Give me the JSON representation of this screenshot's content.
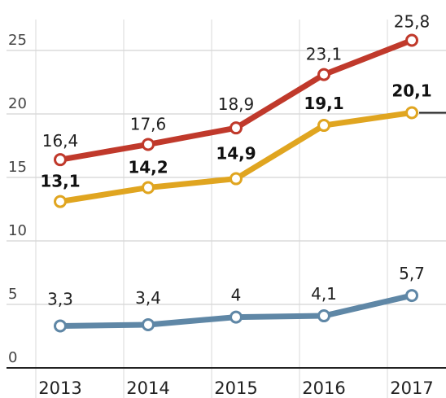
{
  "chart_data": {
    "type": "line",
    "categories": [
      "2013",
      "2014",
      "2015",
      "2016",
      "2017"
    ],
    "ylim": [
      0,
      25
    ],
    "yticks": [
      "0",
      "5",
      "10",
      "15",
      "20",
      "25"
    ],
    "grid": true,
    "series": [
      {
        "values": [
          16.4,
          17.6,
          18.9,
          23.1,
          25.8
        ],
        "labels": [
          "16,4",
          "17,6",
          "18,9",
          "23,1",
          "25,8"
        ],
        "color": "#c0392b",
        "bold_labels": false
      },
      {
        "values": [
          13.1,
          14.2,
          14.9,
          19.1,
          20.1
        ],
        "labels": [
          "13,1",
          "14,2",
          "14,9",
          "19,1",
          "20,1"
        ],
        "color": "#e0a520",
        "bold_labels": true
      },
      {
        "values": [
          3.3,
          3.4,
          4.0,
          4.1,
          5.7
        ],
        "labels": [
          "3,3",
          "3,4",
          "4",
          "4,1",
          "5,7"
        ],
        "color": "#5f87a6",
        "bold_labels": false
      }
    ]
  }
}
